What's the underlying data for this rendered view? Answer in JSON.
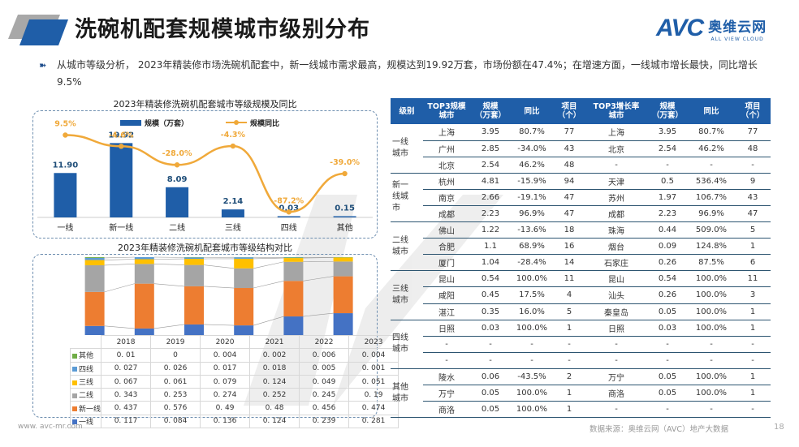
{
  "header": {
    "title": "洗碗机配套规模城市级别分布",
    "brand_mark": "AVC",
    "brand_cn": "奥维云网",
    "brand_en": "ALL VIEW CLOUD"
  },
  "summary": {
    "bullet_icon": "double-arrow-icon",
    "text": "从城市等级分析， 2023年精装修市场洗碗机配套中，新一线城市需求最高，规模达到19.92万套，市场份额在47.4%；在增速方面，一线城市增长最快，同比增长9.5%"
  },
  "colors": {
    "bar_blue": "#1f5ea8",
    "line_orange": "#f0a93a",
    "seg_yixian": "#4472c4",
    "seg_xinyixian": "#ed7d31",
    "seg_erxian": "#a5a5a5",
    "seg_sanxian": "#ffc000",
    "seg_sixian": "#5b9bd5",
    "seg_qita": "#70ad47",
    "table_header": "#1f5ea8"
  },
  "chart_data": [
    {
      "type": "bar",
      "title": "2023年精装修洗碗机配套城市等级规模及同比",
      "categories": [
        "一线",
        "新一线",
        "二线",
        "三线",
        "四线",
        "其他"
      ],
      "series": [
        {
          "name": "规模（万套）",
          "type": "bar",
          "values": [
            11.9,
            19.92,
            8.09,
            2.14,
            0.03,
            0.15
          ],
          "labels": [
            "11.90",
            "19.92",
            "8.09",
            "2.14",
            "0.03",
            "0.15"
          ]
        },
        {
          "name": "规模同比",
          "type": "line",
          "values": [
            9.5,
            -4.6,
            -28.0,
            -4.3,
            -87.2,
            -39.0
          ],
          "labels": [
            "9.5%",
            "-4.6%",
            "-28.0%",
            "-4.3%",
            "-87.2%",
            "-39.0%"
          ]
        }
      ],
      "legend": "top",
      "xlabel": "",
      "ylabel": ""
    },
    {
      "type": "bar",
      "stacked": true,
      "title": "2023年精装修洗碗机配套城市等级结构对比",
      "categories": [
        "2018",
        "2019",
        "2020",
        "2021",
        "2022",
        "2023"
      ],
      "series": [
        {
          "name": "一线",
          "values": [
            0.117,
            0.084,
            0.136,
            0.124,
            0.239,
            0.281
          ]
        },
        {
          "name": "新一线",
          "values": [
            0.437,
            0.576,
            0.49,
            0.48,
            0.456,
            0.474
          ]
        },
        {
          "name": "二线",
          "values": [
            0.343,
            0.253,
            0.274,
            0.252,
            0.245,
            0.19
          ]
        },
        {
          "name": "三线",
          "values": [
            0.067,
            0.061,
            0.079,
            0.124,
            0.049,
            0.051
          ]
        },
        {
          "name": "四线",
          "values": [
            0.027,
            0.026,
            0.017,
            0.018,
            0.005,
            0.001
          ]
        },
        {
          "name": "其他",
          "values": [
            0.01,
            0,
            0.004,
            0.002,
            0.006,
            0.004
          ]
        }
      ],
      "table_rows_order": [
        "其他",
        "四线",
        "三线",
        "二线",
        "新一线",
        "一线"
      ],
      "ylim": [
        0,
        1
      ]
    }
  ],
  "city_table": {
    "headers": [
      "级别",
      "TOP3规模城市",
      "规模（万套）",
      "同比",
      "项目（个）",
      "TOP3增长率城市",
      "规模（万套）",
      "同比",
      "项目（个）"
    ],
    "header_lines": [
      [
        "级别"
      ],
      [
        "TOP3规模",
        "城市"
      ],
      [
        "规模",
        "（万套）"
      ],
      [
        "同比"
      ],
      [
        "项目",
        "（个）"
      ],
      [
        "TOP3增长率",
        "城市"
      ],
      [
        "规模",
        "（万套）"
      ],
      [
        "同比"
      ],
      [
        "项目",
        "（个）"
      ]
    ],
    "groups": [
      {
        "label": "一线城市",
        "label_lines": [
          "一线",
          "城市"
        ],
        "rows": [
          [
            "上海",
            "3.95",
            "80.7%",
            "77",
            "上海",
            "3.95",
            "80.7%",
            "77"
          ],
          [
            "广州",
            "2.85",
            "-34.0%",
            "43",
            "北京",
            "2.54",
            "46.2%",
            "48"
          ],
          [
            "北京",
            "2.54",
            "46.2%",
            "48",
            "-",
            "-",
            "-",
            "-"
          ]
        ]
      },
      {
        "label": "新一线城市",
        "label_lines": [
          "新一",
          "线城",
          "市"
        ],
        "rows": [
          [
            "杭州",
            "4.81",
            "-15.9%",
            "94",
            "天津",
            "0.5",
            "536.4%",
            "9"
          ],
          [
            "南京",
            "2.66",
            "-19.1%",
            "47",
            "苏州",
            "1.97",
            "106.7%",
            "43"
          ],
          [
            "成都",
            "2.23",
            "96.9%",
            "47",
            "成都",
            "2.23",
            "96.9%",
            "47"
          ]
        ]
      },
      {
        "label": "二线城市",
        "label_lines": [
          "二线",
          "城市"
        ],
        "rows": [
          [
            "佛山",
            "1.22",
            "-13.6%",
            "18",
            "珠海",
            "0.44",
            "509.0%",
            "5"
          ],
          [
            "合肥",
            "1.1",
            "68.9%",
            "16",
            "烟台",
            "0.09",
            "124.8%",
            "1"
          ],
          [
            "厦门",
            "1.04",
            "-28.4%",
            "14",
            "石家庄",
            "0.26",
            "87.5%",
            "6"
          ]
        ]
      },
      {
        "label": "三线城市",
        "label_lines": [
          "三线",
          "城市"
        ],
        "rows": [
          [
            "昆山",
            "0.54",
            "100.0%",
            "11",
            "昆山",
            "0.54",
            "100.0%",
            "11"
          ],
          [
            "咸阳",
            "0.45",
            "17.5%",
            "4",
            "汕头",
            "0.26",
            "100.0%",
            "3"
          ],
          [
            "湛江",
            "0.35",
            "16.0%",
            "5",
            "秦皇岛",
            "0.05",
            "100.0%",
            "1"
          ]
        ]
      },
      {
        "label": "四线城市",
        "label_lines": [
          "四线",
          "城市"
        ],
        "rows": [
          [
            "日照",
            "0.03",
            "100.0%",
            "1",
            "日照",
            "0.03",
            "100.0%",
            "1"
          ],
          [
            "-",
            "-",
            "-",
            "-",
            "-",
            "-",
            "-",
            "-"
          ],
          [
            "-",
            "-",
            "-",
            "-",
            "-",
            "-",
            "-",
            "-"
          ]
        ]
      },
      {
        "label": "其他城市",
        "label_lines": [
          "其他",
          "城市"
        ],
        "rows": [
          [
            "陵水",
            "0.06",
            "-43.5%",
            "2",
            "万宁",
            "0.05",
            "100.0%",
            "1"
          ],
          [
            "万宁",
            "0.05",
            "100.0%",
            "1",
            "商洛",
            "0.05",
            "100.0%",
            "1"
          ],
          [
            "商洛",
            "0.05",
            "100.0%",
            "1",
            "-",
            "-",
            "-",
            "-"
          ]
        ]
      }
    ]
  },
  "footer": {
    "url": "www. avc-mr.com",
    "source": "数据来源：奥维云网（AVC）地产大数据",
    "page": "18"
  }
}
